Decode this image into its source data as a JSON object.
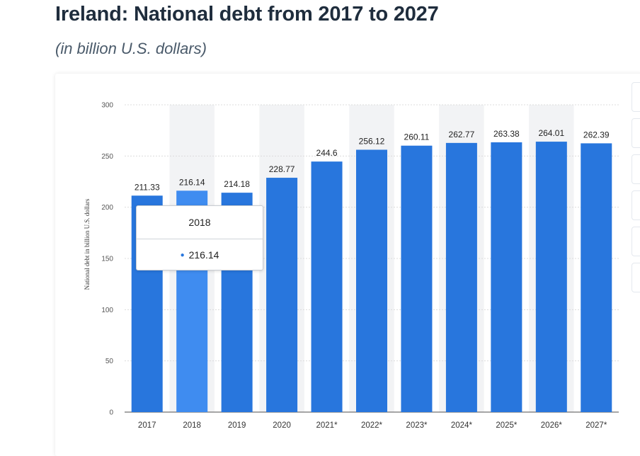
{
  "header": {
    "title": "Ireland: National debt from 2017 to 2027",
    "subtitle": "(in billion U.S. dollars)"
  },
  "tooltip": {
    "category": "2018",
    "value": "216.14"
  },
  "colors": {
    "bar": "#2876dd",
    "bar_highlight": "#3f8cf0",
    "band": "#f2f3f5",
    "grid": "#dcdcdc",
    "axis": "#888888"
  },
  "chart_data": {
    "type": "bar",
    "categories": [
      "2017",
      "2018",
      "2019",
      "2020",
      "2021*",
      "2022*",
      "2023*",
      "2024*",
      "2025*",
      "2026*",
      "2027*"
    ],
    "values": [
      211.33,
      216.14,
      214.18,
      228.77,
      244.6,
      256.12,
      260.11,
      262.77,
      263.38,
      264.01,
      262.39
    ],
    "data_labels": [
      "211.33",
      "216.14",
      "214.18",
      "228.77",
      "244.6",
      "256.12",
      "260.11",
      "262.77",
      "263.38",
      "264.01",
      "262.39"
    ],
    "title": "Ireland: National debt from 2017 to 2027",
    "subtitle": "(in billion U.S. dollars)",
    "xlabel": "",
    "ylabel": "National debt in billion U.S. dollars",
    "ylim": [
      0,
      300
    ],
    "yticks": [
      0,
      50,
      100,
      150,
      200,
      250,
      300
    ],
    "grid": true,
    "highlighted_category": "2018"
  }
}
